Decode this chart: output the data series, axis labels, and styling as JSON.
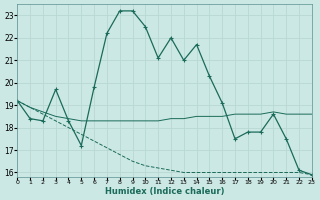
{
  "xlabel": "Humidex (Indice chaleur)",
  "xlim": [
    0,
    23
  ],
  "ylim": [
    15.8,
    23.5
  ],
  "yticks": [
    16,
    17,
    18,
    19,
    20,
    21,
    22,
    23
  ],
  "xticks": [
    0,
    1,
    2,
    3,
    4,
    5,
    6,
    7,
    8,
    9,
    10,
    11,
    12,
    13,
    14,
    15,
    16,
    17,
    18,
    19,
    20,
    21,
    22,
    23
  ],
  "background_color": "#cce8e4",
  "grid_color": "#b8d8d4",
  "line_color": "#1a6b5a",
  "line1_x": [
    0,
    1,
    2,
    3,
    4,
    5,
    6,
    7,
    8,
    9,
    10,
    11,
    12,
    13,
    14,
    15,
    16,
    17,
    18,
    19,
    20,
    21,
    22,
    23
  ],
  "line1_y": [
    19.2,
    18.4,
    18.3,
    19.7,
    18.3,
    17.2,
    19.8,
    22.2,
    23.2,
    23.2,
    22.5,
    21.1,
    22.0,
    21.0,
    21.7,
    20.3,
    19.1,
    17.5,
    17.8,
    17.8,
    18.6,
    17.5,
    16.1,
    15.9
  ],
  "line2_x": [
    0,
    1,
    2,
    3,
    4,
    5,
    6,
    7,
    8,
    9,
    10,
    11,
    12,
    13,
    14,
    15,
    16,
    17,
    18,
    19,
    20,
    21,
    22,
    23
  ],
  "line2_y": [
    19.2,
    18.9,
    18.7,
    18.5,
    18.4,
    18.3,
    18.3,
    18.3,
    18.3,
    18.3,
    18.3,
    18.3,
    18.4,
    18.4,
    18.5,
    18.5,
    18.5,
    18.6,
    18.6,
    18.6,
    18.7,
    18.6,
    18.6,
    18.6
  ],
  "line3_x": [
    0,
    1,
    2,
    3,
    4,
    5,
    6,
    7,
    8,
    9,
    10,
    11,
    12,
    13,
    14,
    15,
    16,
    17,
    18,
    19,
    20,
    21,
    22,
    23
  ],
  "line3_y": [
    19.2,
    18.9,
    18.6,
    18.3,
    18.0,
    17.7,
    17.4,
    17.1,
    16.8,
    16.5,
    16.3,
    16.2,
    16.1,
    16.0,
    16.0,
    16.0,
    16.0,
    16.0,
    16.0,
    16.0,
    16.0,
    16.0,
    16.0,
    15.9
  ]
}
